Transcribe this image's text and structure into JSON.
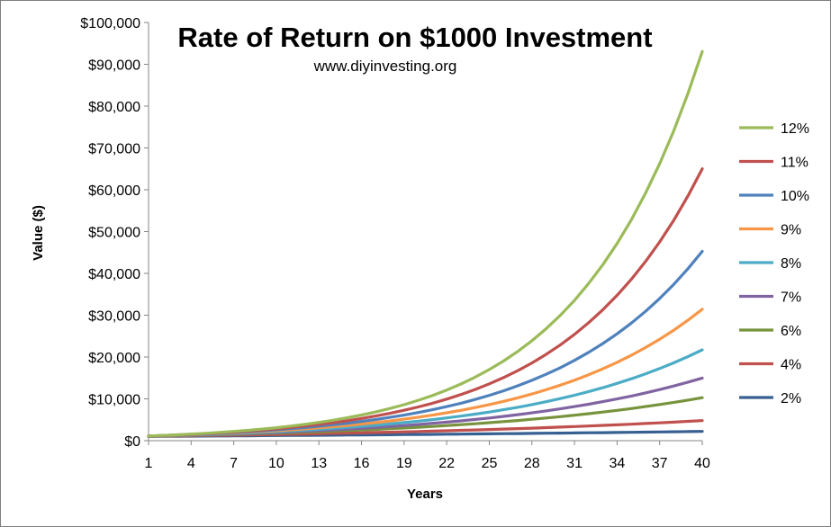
{
  "chart_data": {
    "type": "line",
    "title": "Rate of Return on $1000 Investment",
    "subtitle": "www.diyinvesting.org",
    "xlabel": "Years",
    "ylabel": "Value ($)",
    "x_range": [
      1,
      40
    ],
    "x_ticks": [
      1,
      4,
      7,
      10,
      13,
      16,
      19,
      22,
      25,
      28,
      31,
      34,
      37,
      40
    ],
    "ylim": [
      0,
      100000
    ],
    "y_ticks": [
      0,
      10000,
      20000,
      30000,
      40000,
      50000,
      60000,
      70000,
      80000,
      90000,
      100000
    ],
    "y_tick_labels": [
      "$0",
      "$10,000",
      "$20,000",
      "$30,000",
      "$40,000",
      "$50,000",
      "$60,000",
      "$70,000",
      "$80,000",
      "$90,000",
      "$100,000"
    ],
    "grid": false,
    "legend_position": "right",
    "principal": 1000,
    "series": [
      {
        "name": "12%",
        "rate": 0.12,
        "color": "#9bbb59"
      },
      {
        "name": "11%",
        "rate": 0.11,
        "color": "#c0504d"
      },
      {
        "name": "10%",
        "rate": 0.1,
        "color": "#4f81bd"
      },
      {
        "name": "9%",
        "rate": 0.09,
        "color": "#f79646"
      },
      {
        "name": "8%",
        "rate": 0.08,
        "color": "#4bacc6"
      },
      {
        "name": "7%",
        "rate": 0.07,
        "color": "#8064a2"
      },
      {
        "name": "6%",
        "rate": 0.06,
        "color": "#77933c"
      },
      {
        "name": "4%",
        "rate": 0.04,
        "color": "#c0504d"
      },
      {
        "name": "2%",
        "rate": 0.02,
        "color": "#376092"
      }
    ]
  }
}
